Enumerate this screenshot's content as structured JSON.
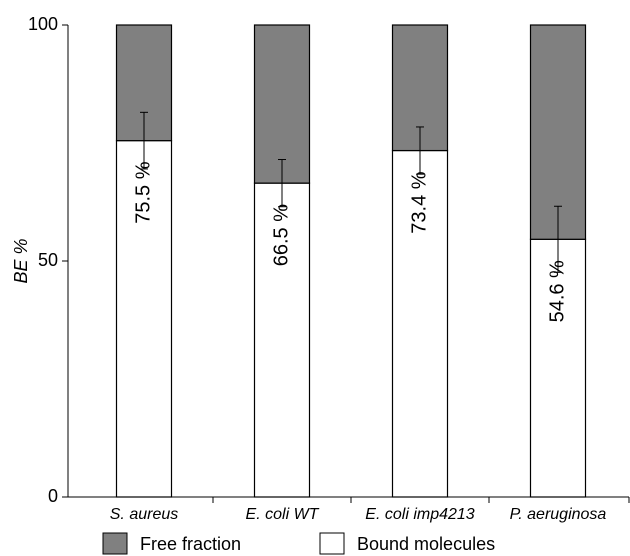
{
  "chart_data": {
    "type": "stacked-bar",
    "y_label": "BE %",
    "categories": [
      "S. aureus",
      "E. coli WT",
      "E. coli imp4213",
      "P. aeruginosa"
    ],
    "series": [
      {
        "name": "Bound molecules",
        "color": "#ffffff",
        "values": [
          75.5,
          66.5,
          73.4,
          54.6
        ],
        "value_labels": [
          "75.5 %",
          "66.5 %",
          "73.4 %",
          "54.6 %"
        ],
        "errors": [
          6,
          5,
          5,
          7
        ]
      },
      {
        "name": "Free fraction",
        "color": "#808080",
        "values": [
          24.5,
          33.5,
          26.6,
          45.4
        ]
      }
    ],
    "ylim": [
      0,
      100
    ],
    "yticks": [
      0,
      50,
      100
    ]
  }
}
